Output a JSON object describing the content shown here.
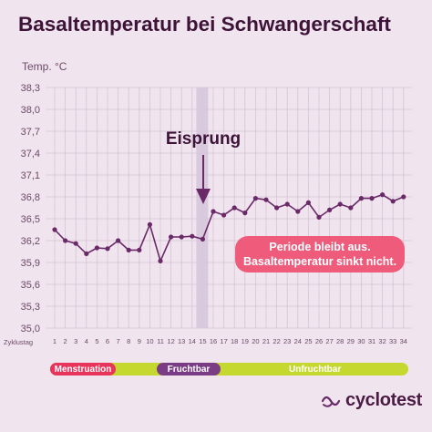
{
  "chart_data": {
    "type": "line",
    "title": "Basaltemperatur bei Schwangerschaft",
    "ylabel": "Temp. °C",
    "xlabel": "Zyklustag",
    "ylim": [
      35.0,
      38.3
    ],
    "y_ticks": [
      "38,3",
      "38,0",
      "37,7",
      "37,4",
      "37,1",
      "36,8",
      "36,5",
      "36,2",
      "35,9",
      "35,6",
      "35,3",
      "35,0"
    ],
    "x": [
      1,
      2,
      3,
      4,
      5,
      6,
      7,
      8,
      9,
      10,
      11,
      12,
      13,
      14,
      15,
      16,
      17,
      18,
      19,
      20,
      21,
      22,
      23,
      24,
      25,
      26,
      27,
      28,
      29,
      30,
      31,
      32,
      33,
      34
    ],
    "series": [
      {
        "values": [
          36.35,
          36.2,
          36.16,
          36.02,
          36.1,
          36.09,
          36.2,
          36.07,
          36.07,
          36.42,
          35.92,
          36.25,
          36.25,
          36.26,
          36.22,
          36.6,
          36.55,
          36.65,
          36.58,
          36.78,
          36.76,
          36.65,
          36.7,
          36.6,
          36.72,
          36.52,
          36.62,
          36.7,
          36.65,
          36.78,
          36.78,
          36.83,
          36.74,
          36.8
        ]
      }
    ],
    "grid": true,
    "marker_day": 15,
    "annotations": {
      "ovulation": "Eisprung",
      "callout_line1": "Periode bleibt aus.",
      "callout_line2": "Basaltemperatur sinkt nicht."
    },
    "phases": {
      "menstruation": "Menstruation",
      "fertile": "Fruchtbar",
      "infertile": "Unfruchtbar"
    },
    "colors": {
      "line": "#6a2a68",
      "marker_band": "#d7c6dc",
      "arrow": "#6a2a68",
      "callout": "#ee5b7b",
      "menstruation": "#e8345a",
      "fertile": "#7a3d85",
      "infertile": "#c5d830"
    }
  },
  "brand": {
    "name": "cyclotest",
    "icon": "cyclotest-logo-icon"
  }
}
